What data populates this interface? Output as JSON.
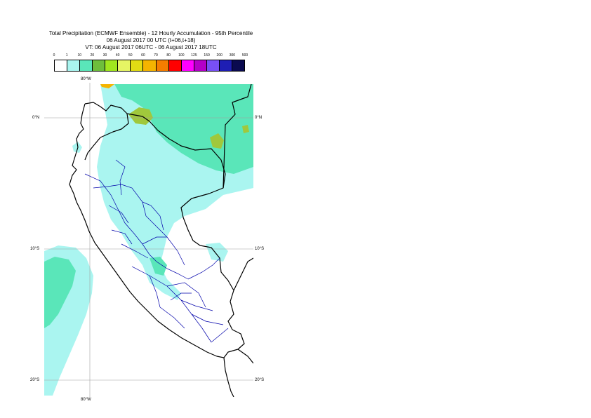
{
  "title": {
    "line1": "Total Precipitation (ECMWF Ensemble) - 12 Hourly Accumulation - 95th Percentile",
    "line2": "06 August 2017 00 UTC (t+06,t+18)",
    "line3": "VT: 06 August 2017 06UTC - 06 August 2017 18UTC"
  },
  "legend": {
    "ticks": [
      "0",
      "1",
      "10",
      "20",
      "30",
      "40",
      "50",
      "60",
      "70",
      "80",
      "100",
      "125",
      "150",
      "200",
      "300",
      "500"
    ],
    "colors": [
      "#ffffff",
      "#aaf5f0",
      "#5ae6b9",
      "#6ebe3c",
      "#a0e61e",
      "#e6f564",
      "#e1dc14",
      "#f5b400",
      "#f57d00",
      "#ff0000",
      "#ff00ff",
      "#b400c8",
      "#7850f5",
      "#1e1eb4",
      "#0a0a50"
    ]
  },
  "map": {
    "lon_labels": [
      "80°W",
      "80°W"
    ],
    "lat_labels": {
      "left": [
        "0°N",
        "10°S",
        "20°S"
      ],
      "right": [
        "0°N",
        "10°S",
        "20°S"
      ]
    },
    "colors": {
      "land": "#ffffff",
      "precip_light": "#aaf5f0",
      "precip_medium": "#5ae6b9",
      "precip_heavy": "#a0c83c",
      "coastline": "#000000",
      "admin_border": "#0000aa",
      "grid": "#a0a0a0"
    }
  }
}
